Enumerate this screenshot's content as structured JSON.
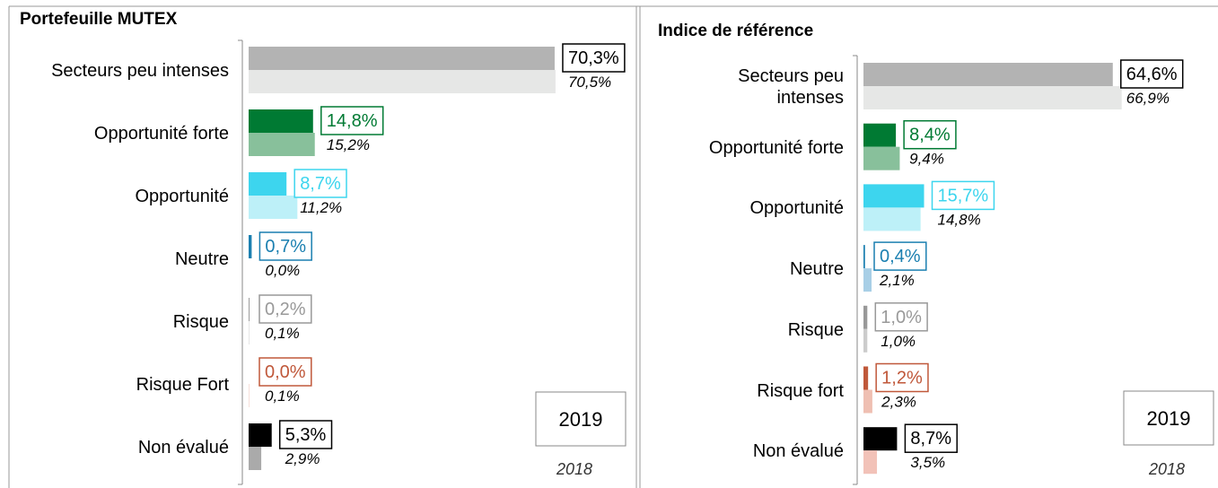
{
  "chart_data": [
    {
      "type": "bar",
      "orientation": "horizontal",
      "title": "Portefeuille MUTEX",
      "categories": [
        "Secteurs peu intenses",
        "Opportunité forte",
        "Opportunité",
        "Neutre",
        "Risque",
        "Risque Fort",
        "Non évalué"
      ],
      "xlim": [
        0,
        80
      ],
      "series": [
        {
          "name": "2019",
          "colors": [
            "#b3b3b3",
            "#007a33",
            "#3dd5ee",
            "#1a7fb0",
            "#999999",
            "#c0583a",
            "#000000"
          ],
          "label_colors": [
            "#000000",
            "#007a33",
            "#3dd5ee",
            "#1a7fb0",
            "#999999",
            "#c0583a",
            "#000000"
          ],
          "values": [
            70.3,
            14.8,
            8.7,
            0.7,
            0.2,
            0.0,
            5.3
          ],
          "value_labels": [
            "70,3%",
            "14,8%",
            "8,7%",
            "0,7%",
            "0,2%",
            "0,0%",
            "5,3%"
          ]
        },
        {
          "name": "2018",
          "colors": [
            "#e6e7e6",
            "#88c09b",
            "#bdf0f8",
            "#a8cfe6",
            "#cccccc",
            "#efbfb2",
            "#aaaaaa"
          ],
          "values": [
            70.5,
            15.2,
            11.2,
            0.0,
            0.1,
            0.1,
            2.9
          ],
          "value_labels": [
            "70,5%",
            "15,2%",
            "11,2%",
            "0,0%",
            "0,1%",
            "0,1%",
            "2,9%"
          ]
        }
      ]
    },
    {
      "type": "bar",
      "orientation": "horizontal",
      "title": "Indice de référence",
      "categories": [
        "Secteurs peu intenses",
        "Opportunité forte",
        "Opportunité",
        "Neutre",
        "Risque",
        "Risque fort",
        "Non évalué"
      ],
      "xlim": [
        0,
        80
      ],
      "series": [
        {
          "name": "2019",
          "colors": [
            "#b3b3b3",
            "#007a33",
            "#3dd5ee",
            "#1a7fb0",
            "#999999",
            "#c0583a",
            "#000000"
          ],
          "label_colors": [
            "#000000",
            "#007a33",
            "#3dd5ee",
            "#1a7fb0",
            "#999999",
            "#c0583a",
            "#000000"
          ],
          "values": [
            64.6,
            8.4,
            15.7,
            0.4,
            1.0,
            1.2,
            8.7
          ],
          "value_labels": [
            "64,6%",
            "8,4%",
            "15,7%",
            "0,4%",
            "1,0%",
            "1,2%",
            "8,7%"
          ]
        },
        {
          "name": "2018",
          "colors": [
            "#e6e7e6",
            "#88c09b",
            "#bdf0f8",
            "#a8cfe6",
            "#cccccc",
            "#efbfb2",
            "#f2c2b8"
          ],
          "values": [
            66.9,
            9.4,
            14.8,
            2.1,
            1.0,
            2.3,
            3.5
          ],
          "value_labels": [
            "66,9%",
            "9,4%",
            "14,8%",
            "2,1%",
            "1,0%",
            "2,3%",
            "3,5%"
          ]
        }
      ]
    }
  ]
}
